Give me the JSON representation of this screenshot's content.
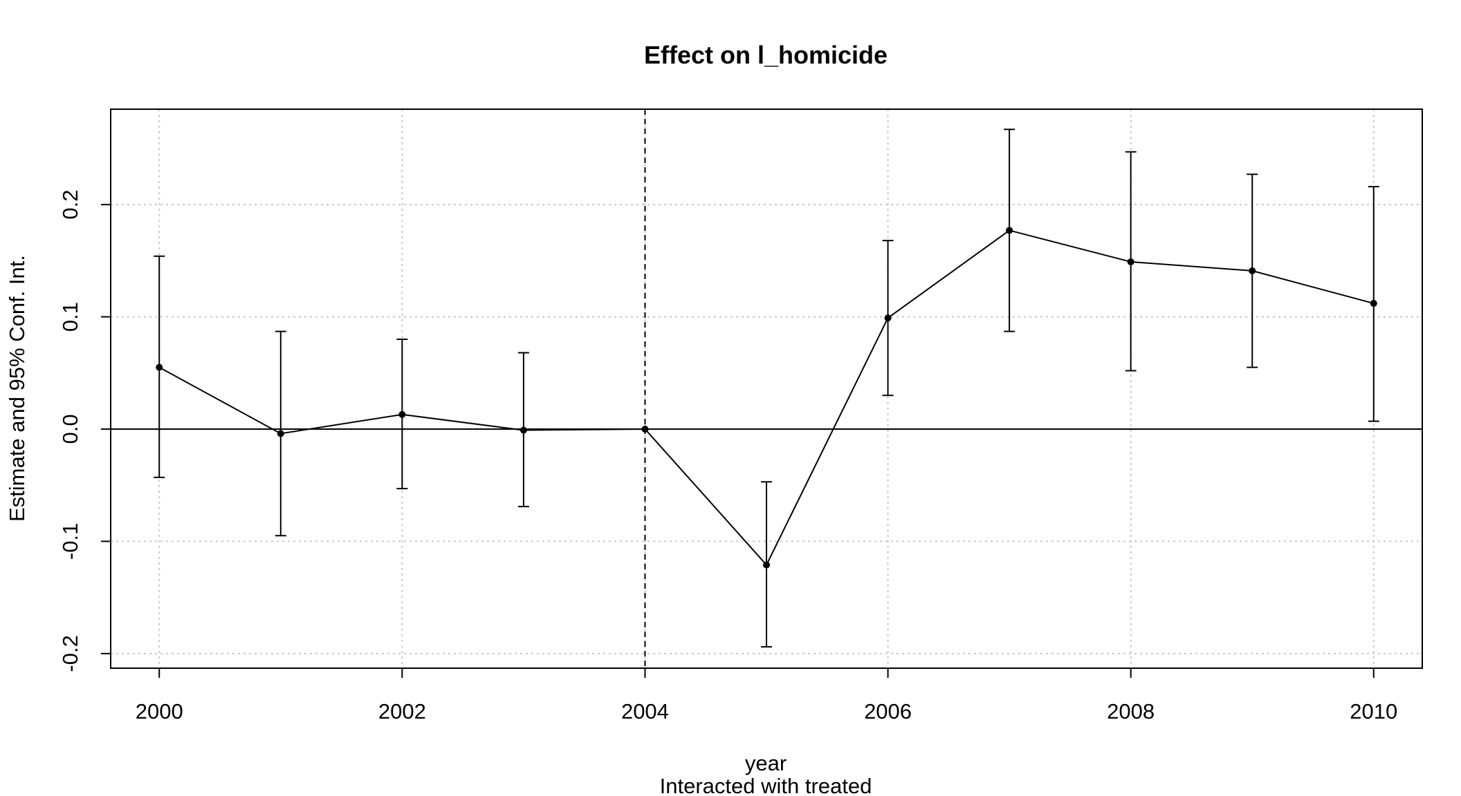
{
  "chart_data": {
    "type": "line",
    "title": "Effect on l_homicide",
    "xlabel": "year",
    "xsublabel": "Interacted with treated",
    "ylabel": "Estimate and 95% Conf. Int.",
    "xlim": [
      1999.6,
      2010.4
    ],
    "ylim": [
      -0.213,
      0.285
    ],
    "x_ticks": [
      2000,
      2002,
      2004,
      2006,
      2008,
      2010
    ],
    "x_tick_labels": [
      "2000",
      "2002",
      "2004",
      "2006",
      "2008",
      "2010"
    ],
    "y_ticks": [
      -0.2,
      -0.1,
      0.0,
      0.1,
      0.2
    ],
    "y_tick_labels": [
      "-0.2",
      "-0.1",
      "0.0",
      "0.1",
      "0.2"
    ],
    "grid": true,
    "reference_hline": 0,
    "reference_vline": 2004,
    "series": [
      {
        "x": [
          2000,
          2001,
          2002,
          2003,
          2004,
          2005,
          2006,
          2007,
          2008,
          2009,
          2010
        ],
        "estimate": [
          0.055,
          -0.004,
          0.013,
          -0.001,
          0.0,
          -0.121,
          0.099,
          0.177,
          0.149,
          0.141,
          0.112
        ],
        "ci_low": [
          -0.043,
          -0.095,
          -0.053,
          -0.069,
          0.0,
          -0.194,
          0.03,
          0.087,
          0.052,
          0.055,
          0.007
        ],
        "ci_high": [
          0.154,
          0.087,
          0.08,
          0.068,
          0.0,
          -0.047,
          0.168,
          0.267,
          0.247,
          0.227,
          0.216
        ]
      }
    ]
  }
}
